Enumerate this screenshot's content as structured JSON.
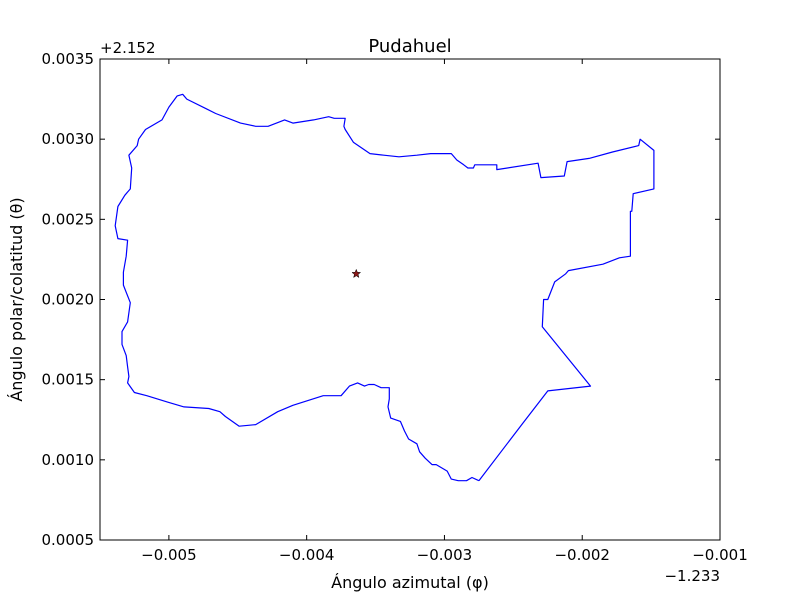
{
  "chart_data": {
    "type": "line",
    "title": "Pudahuel",
    "xlabel": "Ángulo azimutal (φ)",
    "ylabel": "Ángulo polar/colatitud (θ)",
    "x_offset_label": "−1.233",
    "y_offset_label": "+2.152",
    "xlim": [
      -0.0055,
      -0.001
    ],
    "ylim": [
      0.0035,
      0.0005
    ],
    "y_inverted": true,
    "x_ticks": [
      -0.005,
      -0.004,
      -0.003,
      -0.002,
      -0.001
    ],
    "x_tick_labels": [
      "−0.005",
      "−0.004",
      "−0.003",
      "−0.002",
      "−0.001"
    ],
    "y_ticks": [
      0.0005,
      0.001,
      0.0015,
      0.002,
      0.0025,
      0.003,
      0.0035
    ],
    "y_tick_labels": [
      "0.0005",
      "0.0010",
      "0.0015",
      "0.0020",
      "0.0025",
      "0.0030",
      "0.0035"
    ],
    "grid": false,
    "legend": "none",
    "series": [
      {
        "kind": "line",
        "color": "#0000ff",
        "x": [
          -0.00275,
          -0.00243,
          -0.00225,
          -0.00194,
          -0.00228,
          -0.00229,
          -0.00228,
          -0.00225,
          -0.0022,
          -0.00212,
          -0.0021,
          -0.00185,
          -0.00173,
          -0.00165,
          -0.00165,
          -0.00164,
          -0.00163,
          -0.00148,
          -0.00148,
          -0.00158,
          -0.00159,
          -0.00178,
          -0.00195,
          -0.00211,
          -0.00213,
          -0.0023,
          -0.00232,
          -0.00262,
          -0.00262,
          -0.00278,
          -0.00279,
          -0.00283,
          -0.00286,
          -0.00291,
          -0.00295,
          -0.0031,
          -0.0032,
          -0.00333,
          -0.00344,
          -0.00354,
          -0.00366,
          -0.00372,
          -0.00373,
          -0.00372,
          -0.0038,
          -0.00384,
          -0.00395,
          -0.0041,
          -0.00416,
          -0.00428,
          -0.00437,
          -0.00448,
          -0.00466,
          -0.00473,
          -0.00487,
          -0.0049,
          -0.00494,
          -0.005,
          -0.00505,
          -0.00517,
          -0.00522,
          -0.00523,
          -0.00529,
          -0.00527,
          -0.00528,
          -0.00532,
          -0.00537,
          -0.00539,
          -0.00537,
          -0.0053,
          -0.00531,
          -0.00533,
          -0.00533,
          -0.00528,
          -0.0053,
          -0.00534,
          -0.00534,
          -0.00531,
          -0.0053,
          -0.00529,
          -0.0053,
          -0.00525,
          -0.00516,
          -0.00501,
          -0.00489,
          -0.00471,
          -0.00463,
          -0.00459,
          -0.00449,
          -0.00437,
          -0.00421,
          -0.0041,
          -0.00388,
          -0.00375,
          -0.00369,
          -0.00363,
          -0.00358,
          -0.00355,
          -0.00351,
          -0.00346,
          -0.0034,
          -0.0034,
          -0.00341,
          -0.00339,
          -0.00332,
          -0.00329,
          -0.00326,
          -0.0032,
          -0.00318,
          -0.00314,
          -0.00309,
          -0.00306,
          -0.00298,
          -0.00295,
          -0.0029,
          -0.00286,
          -0.00284,
          -0.0028,
          -0.00275
        ],
        "y": [
          0.00087,
          0.00123,
          0.00143,
          0.00146,
          0.00182,
          0.00183,
          0.002,
          0.002,
          0.00211,
          0.00216,
          0.00218,
          0.00222,
          0.00226,
          0.00227,
          0.00255,
          0.00255,
          0.00266,
          0.00269,
          0.00293,
          0.003,
          0.00296,
          0.00292,
          0.00288,
          0.00286,
          0.00277,
          0.00276,
          0.00285,
          0.00281,
          0.00284,
          0.00284,
          0.00282,
          0.00282,
          0.00284,
          0.00287,
          0.00291,
          0.00291,
          0.0029,
          0.00289,
          0.0029,
          0.00291,
          0.00298,
          0.00306,
          0.00308,
          0.00313,
          0.00313,
          0.00314,
          0.00312,
          0.0031,
          0.00312,
          0.00308,
          0.00308,
          0.0031,
          0.00316,
          0.00319,
          0.00325,
          0.00328,
          0.00327,
          0.0032,
          0.00312,
          0.00306,
          0.003,
          0.00296,
          0.0029,
          0.00282,
          0.00269,
          0.00265,
          0.00258,
          0.00246,
          0.00238,
          0.00237,
          0.00227,
          0.00217,
          0.00209,
          0.00198,
          0.00186,
          0.0018,
          0.00172,
          0.00165,
          0.00158,
          0.00152,
          0.00148,
          0.00142,
          0.0014,
          0.00136,
          0.00133,
          0.00132,
          0.0013,
          0.00127,
          0.00121,
          0.00122,
          0.0013,
          0.00134,
          0.0014,
          0.0014,
          0.00146,
          0.00148,
          0.00146,
          0.00147,
          0.00147,
          0.00145,
          0.00145,
          0.00138,
          0.00133,
          0.00126,
          0.00124,
          0.00118,
          0.00113,
          0.0011,
          0.00105,
          0.00101,
          0.00097,
          0.00097,
          0.00093,
          0.00088,
          0.00087,
          0.00087,
          0.00087,
          0.00089,
          0.00087
        ]
      },
      {
        "kind": "marker",
        "marker": "star",
        "color": "#8b1a1a",
        "x": [
          -0.00364
        ],
        "y": [
          0.00216
        ]
      }
    ]
  }
}
